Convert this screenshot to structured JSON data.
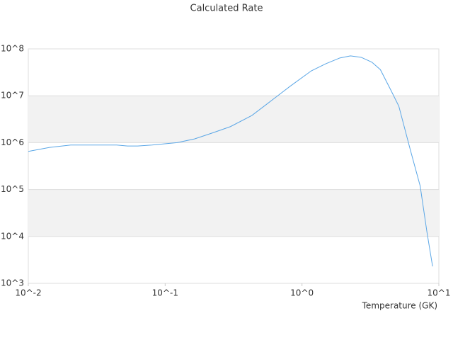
{
  "chart_data": {
    "type": "line",
    "title": "Calculated Rate",
    "x_label": "Temperature (GK)",
    "x_scale": "log",
    "y_scale": "log",
    "grid": true,
    "xlim": [
      0.01,
      10
    ],
    "ylim": [
      1000,
      100000000
    ],
    "xticks": [
      {
        "value": 0.01,
        "label": "10^-2"
      },
      {
        "value": 0.1,
        "label": "10^-1"
      },
      {
        "value": 1,
        "label": "10^0"
      },
      {
        "value": 10,
        "label": "10^1"
      }
    ],
    "yticks": [
      {
        "value": 1000,
        "label": "10^3"
      },
      {
        "value": 10000,
        "label": "10^4"
      },
      {
        "value": 100000,
        "label": "10^5"
      },
      {
        "value": 1000000,
        "label": "10^6"
      },
      {
        "value": 10000000,
        "label": "10^7"
      },
      {
        "value": 100000000,
        "label": "10^8"
      }
    ],
    "x": [
      0.01,
      0.0143,
      0.0204,
      0.029,
      0.0443,
      0.053,
      0.063,
      0.08,
      0.122,
      0.164,
      0.22,
      0.3,
      0.43,
      0.57,
      0.82,
      1.17,
      1.49,
      1.89,
      2.26,
      2.71,
      3.24,
      3.74,
      4.47,
      5.1,
      6.2,
      7.3,
      8.2,
      9.0
    ],
    "series": [
      {
        "color": "#5aa6e6",
        "values": [
          650000,
          790000,
          890000,
          890000,
          890000,
          850000,
          850000,
          890000,
          1000000,
          1200000,
          1600000,
          2200000,
          3800000,
          7100000,
          16000000,
          34000000,
          48000000,
          64000000,
          71000000,
          66000000,
          52000000,
          36000000,
          13000000,
          6000000,
          690000,
          120000,
          12000,
          2300
        ]
      }
    ]
  }
}
